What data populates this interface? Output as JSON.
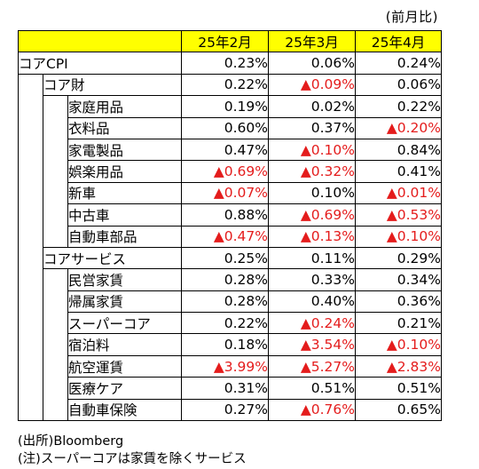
{
  "unit_note": "(前月比)",
  "headers": [
    "25年2月",
    "25年3月",
    "25年4月"
  ],
  "rows": [
    {
      "level": 0,
      "label": "コアCPI",
      "values": [
        "0.23%",
        "0.06%",
        "0.24%"
      ],
      "negative": [
        false,
        false,
        false
      ]
    },
    {
      "level": 1,
      "label": "コア財",
      "values": [
        "0.22%",
        "▲0.09%",
        "0.06%"
      ],
      "negative": [
        false,
        true,
        false
      ]
    },
    {
      "level": 2,
      "label": "家庭用品",
      "values": [
        "0.19%",
        "0.02%",
        "0.22%"
      ],
      "negative": [
        false,
        false,
        false
      ]
    },
    {
      "level": 2,
      "label": "衣料品",
      "values": [
        "0.60%",
        "0.37%",
        "▲0.20%"
      ],
      "negative": [
        false,
        false,
        true
      ]
    },
    {
      "level": 2,
      "label": "家電製品",
      "values": [
        "0.47%",
        "▲0.10%",
        "0.84%"
      ],
      "negative": [
        false,
        true,
        false
      ]
    },
    {
      "level": 2,
      "label": "娯楽用品",
      "values": [
        "▲0.69%",
        "▲0.32%",
        "0.41%"
      ],
      "negative": [
        true,
        true,
        false
      ]
    },
    {
      "level": 2,
      "label": "新車",
      "values": [
        "▲0.07%",
        "0.10%",
        "▲0.01%"
      ],
      "negative": [
        true,
        false,
        true
      ]
    },
    {
      "level": 2,
      "label": "中古車",
      "values": [
        "0.88%",
        "▲0.69%",
        "▲0.53%"
      ],
      "negative": [
        false,
        true,
        true
      ]
    },
    {
      "level": 2,
      "label": "自動車部品",
      "values": [
        "▲0.47%",
        "▲0.13%",
        "▲0.10%"
      ],
      "negative": [
        true,
        true,
        true
      ]
    },
    {
      "level": 1,
      "label": "コアサービス",
      "values": [
        "0.25%",
        "0.11%",
        "0.29%"
      ],
      "negative": [
        false,
        false,
        false
      ]
    },
    {
      "level": 2,
      "label": "民営家賃",
      "values": [
        "0.28%",
        "0.33%",
        "0.34%"
      ],
      "negative": [
        false,
        false,
        false
      ]
    },
    {
      "level": 2,
      "label": "帰属家賃",
      "values": [
        "0.28%",
        "0.40%",
        "0.36%"
      ],
      "negative": [
        false,
        false,
        false
      ]
    },
    {
      "level": 2,
      "label": "スーパーコア",
      "values": [
        "0.22%",
        "▲0.24%",
        "0.21%"
      ],
      "negative": [
        false,
        true,
        false
      ]
    },
    {
      "level": 2,
      "label": "宿泊料",
      "values": [
        "0.18%",
        "▲3.54%",
        "▲0.10%"
      ],
      "negative": [
        false,
        true,
        true
      ]
    },
    {
      "level": 2,
      "label": "航空運賃",
      "values": [
        "▲3.99%",
        "▲5.27%",
        "▲2.83%"
      ],
      "negative": [
        true,
        true,
        true
      ]
    },
    {
      "level": 2,
      "label": "医療ケア",
      "values": [
        "0.31%",
        "0.51%",
        "0.51%"
      ],
      "negative": [
        false,
        false,
        false
      ]
    },
    {
      "level": 2,
      "label": "自動車保険",
      "values": [
        "0.27%",
        "▲0.76%",
        "0.65%"
      ],
      "negative": [
        false,
        true,
        false
      ]
    }
  ],
  "notes": {
    "source": "(出所)Bloomberg",
    "note": "(注)スーパーコアは家賃を除くサービス"
  },
  "colors": {
    "header_fill": "#ffff00",
    "negative": "#e41c1c",
    "text": "#000000"
  }
}
